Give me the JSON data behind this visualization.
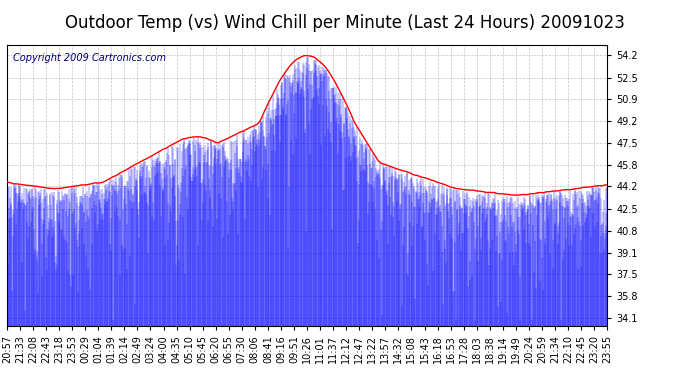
{
  "title": "Outdoor Temp (vs) Wind Chill per Minute (Last 24 Hours) 20091023",
  "copyright_text": "Copyright 2009 Cartronics.com",
  "background_color": "#ffffff",
  "plot_bg_color": "#ffffff",
  "grid_color": "#aaaaaa",
  "y_ticks": [
    34.1,
    35.8,
    37.5,
    39.1,
    40.8,
    42.5,
    44.2,
    45.8,
    47.5,
    49.2,
    50.9,
    52.5,
    54.2
  ],
  "ylim": [
    33.5,
    55.0
  ],
  "x_labels": [
    "20:57",
    "21:33",
    "22:08",
    "22:43",
    "23:18",
    "23:53",
    "00:29",
    "01:04",
    "01:39",
    "02:14",
    "02:49",
    "03:24",
    "04:00",
    "04:35",
    "05:10",
    "05:45",
    "06:20",
    "06:55",
    "07:30",
    "08:06",
    "08:41",
    "09:16",
    "09:51",
    "10:26",
    "11:01",
    "11:37",
    "12:12",
    "12:47",
    "13:22",
    "13:57",
    "14:32",
    "15:08",
    "15:43",
    "16:18",
    "16:53",
    "17:28",
    "18:03",
    "18:38",
    "19:14",
    "19:49",
    "20:24",
    "20:59",
    "21:34",
    "22:10",
    "22:45",
    "23:20",
    "23:55"
  ],
  "num_points": 1440,
  "red_line_color": "#ff0000",
  "blue_bar_color": "#0000ff",
  "title_fontsize": 12,
  "copyright_fontsize": 7,
  "tick_fontsize": 7
}
